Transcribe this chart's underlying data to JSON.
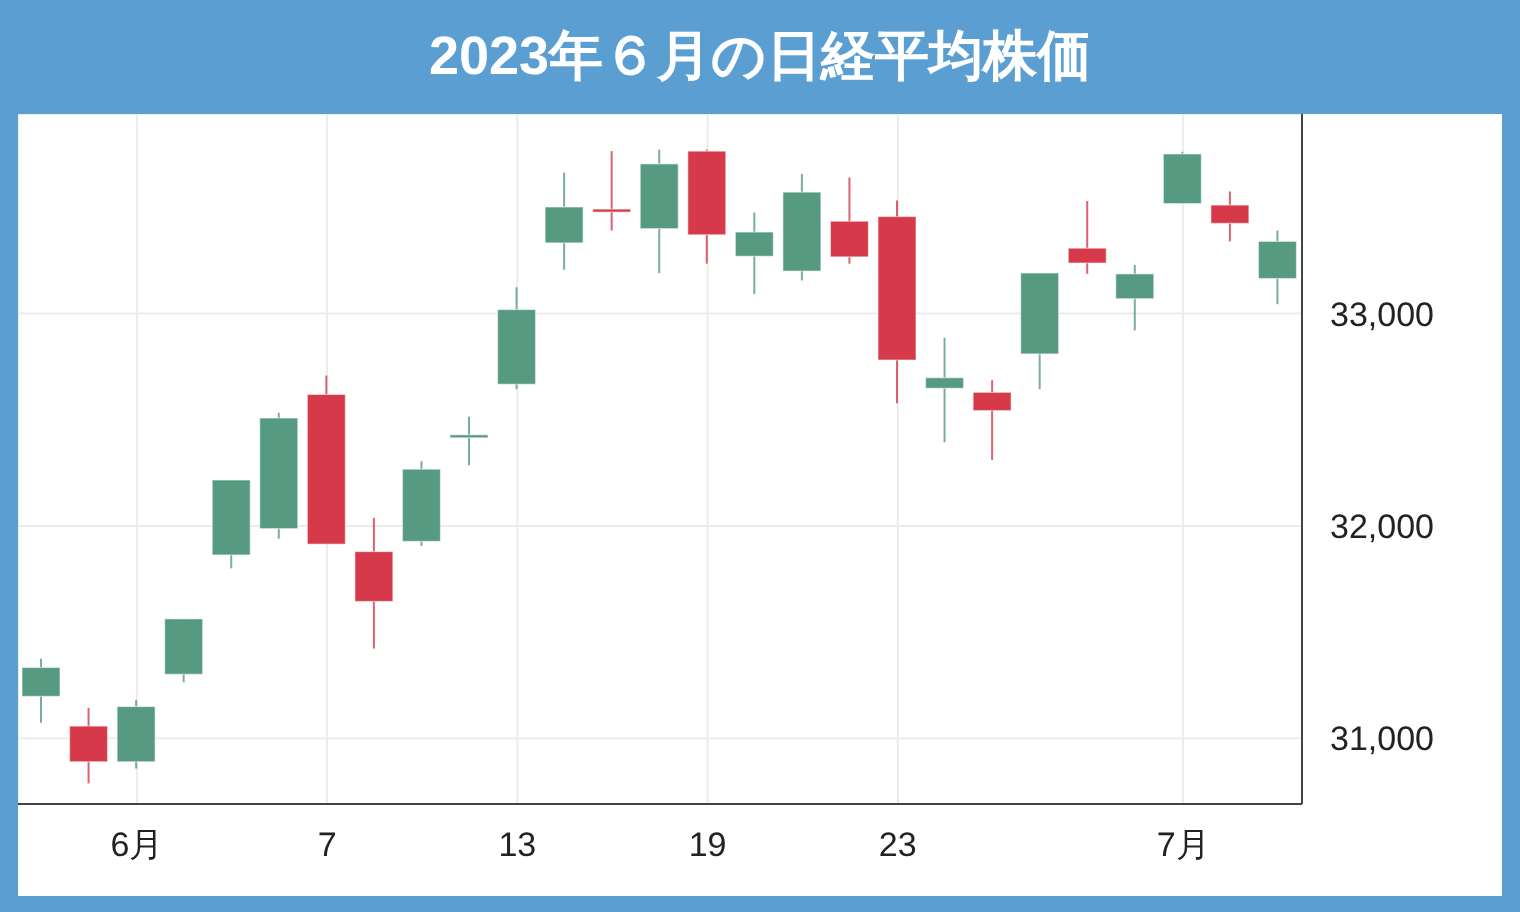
{
  "chart_data": {
    "type": "candlestick",
    "title": "2023年６月の日経平均株価",
    "categories": [
      null,
      null,
      "6月",
      null,
      null,
      null,
      "7",
      null,
      null,
      null,
      "13",
      null,
      null,
      null,
      "19",
      null,
      null,
      null,
      "23",
      null,
      null,
      null,
      null,
      null,
      "7月",
      null,
      null
    ],
    "ohlc": [
      [
        31197,
        31374,
        31073,
        31333
      ],
      [
        31057,
        31143,
        30787,
        30889
      ],
      [
        30889,
        31181,
        30857,
        31149
      ],
      [
        31301,
        31562,
        31263,
        31562
      ],
      [
        31863,
        32216,
        31800,
        32216
      ],
      [
        31987,
        32533,
        31940,
        32508
      ],
      [
        32619,
        32708,
        31914,
        31914
      ],
      [
        31879,
        32038,
        31422,
        31644
      ],
      [
        31927,
        32305,
        31905,
        32267
      ],
      [
        32416,
        32514,
        32286,
        32429
      ],
      [
        32667,
        33124,
        32644,
        33019
      ],
      [
        33333,
        33664,
        33206,
        33502
      ],
      [
        33492,
        33765,
        33391,
        33483
      ],
      [
        33400,
        33772,
        33190,
        33705
      ],
      [
        33765,
        33772,
        33235,
        33371
      ],
      [
        33270,
        33476,
        33092,
        33384
      ],
      [
        33200,
        33657,
        33156,
        33572
      ],
      [
        33435,
        33641,
        33235,
        33267
      ],
      [
        33457,
        33533,
        32578,
        32781
      ],
      [
        32648,
        32886,
        32394,
        32698
      ],
      [
        32629,
        32686,
        32311,
        32543
      ],
      [
        32810,
        33191,
        32644,
        33191
      ],
      [
        33308,
        33530,
        33187,
        33238
      ],
      [
        33070,
        33229,
        32921,
        33187
      ],
      [
        33518,
        33762,
        33518,
        33752
      ],
      [
        33511,
        33575,
        33340,
        33425
      ],
      [
        33165,
        33391,
        33044,
        33340
      ]
    ],
    "colors": [
      "#579a82",
      "#d63a4a",
      "#579a82",
      "#579a82",
      "#579a82",
      "#579a82",
      "#d63a4a",
      "#d63a4a",
      "#579a82",
      "#579a82",
      "#579a82",
      "#579a82",
      "#d63a4a",
      "#579a82",
      "#d63a4a",
      "#579a82",
      "#579a82",
      "#d63a4a",
      "#d63a4a",
      "#579a82",
      "#d63a4a",
      "#579a82",
      "#d63a4a",
      "#579a82",
      "#579a82",
      "#d63a4a",
      "#579a82"
    ],
    "ylim": [
      30690,
      33940
    ],
    "yticks": [
      {
        "value": 31000,
        "label": "31,000"
      },
      {
        "value": 32000,
        "label": "32,000"
      },
      {
        "value": 33000,
        "label": "33,000"
      }
    ],
    "grid": true
  }
}
